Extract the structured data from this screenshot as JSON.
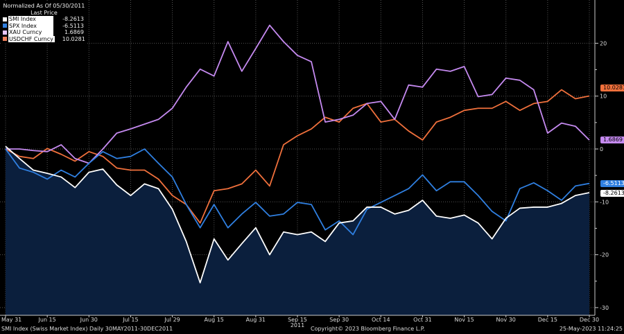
{
  "legend": {
    "header_line1": "Normalized As Of 05/30/2011",
    "header_line2": "Last Price",
    "items": [
      {
        "name": "SMI Index",
        "value": "-8.2613",
        "color": "#ffffff"
      },
      {
        "name": "SPX Index",
        "value": "-6.5113",
        "color": "#2f7fe0"
      },
      {
        "name": "XAU Curncy",
        "value": "1.6869",
        "color": "#c58af0"
      },
      {
        "name": "USDCHF Curncy",
        "value": "10.0281",
        "color": "#f0703c"
      }
    ]
  },
  "chart_data": {
    "type": "line",
    "x_range": [
      "2011-05-31",
      "2011-12-30"
    ],
    "x_tick_labels": [
      "May 31",
      "Jun 15",
      "Jun 30",
      "Jul 15",
      "Jul 29",
      "Aug 15",
      "Aug 31",
      "Sep 15",
      "Sep 30",
      "Oct 14",
      "Oct 31",
      "Nov 15",
      "Nov 30",
      "Dec 15",
      "Dec 30"
    ],
    "x_year_label": "2011",
    "y_ticks": [
      20,
      10,
      0,
      -10,
      -20,
      -30
    ],
    "ylim": [
      -30,
      24
    ],
    "y_axis_side": "right",
    "grid": true,
    "legend_position": "top-left",
    "area_fill_series": "SMI Index",
    "area_fill_color": "#0b1f3d",
    "series": [
      {
        "name": "SMI Index",
        "color": "#ffffff",
        "last": "-8.2613",
        "values": [
          0.5,
          -1.8,
          -4,
          -4.6,
          -5.3,
          -7.3,
          -4.4,
          -3.8,
          -6.8,
          -8.8,
          -6.6,
          -7.5,
          -11.4,
          -17.5,
          -25.3,
          -17,
          -21,
          -17.9,
          -14.9,
          -20,
          -15.7,
          -16.2,
          -15.7,
          -17.5,
          -14,
          -13.6,
          -11,
          -11,
          -12.3,
          -11.6,
          -9.7,
          -12.7,
          -13.1,
          -12.5,
          -14,
          -17,
          -13.1,
          -11.2,
          -11,
          -11,
          -10.3,
          -8.8,
          -8.2613
        ]
      },
      {
        "name": "SPX Index",
        "color": "#2f7fe0",
        "last": "-6.5113",
        "values": [
          0,
          -3.6,
          -4.4,
          -5.7,
          -4,
          -5.3,
          -2.7,
          -0.5,
          -1.8,
          -1.4,
          0,
          -2.7,
          -5.3,
          -10.5,
          -14.9,
          -10.5,
          -14.9,
          -12.3,
          -10.1,
          -12.7,
          -12.3,
          -10.1,
          -10.5,
          -15.3,
          -13.6,
          -16.2,
          -11.4,
          -10.1,
          -8.8,
          -7.5,
          -4.9,
          -7.9,
          -6.2,
          -6.2,
          -8.8,
          -11.8,
          -13.6,
          -7.5,
          -6.4,
          -7.9,
          -9.7,
          -7,
          -6.5113
        ]
      },
      {
        "name": "XAU Curncy",
        "color": "#c58af0",
        "last": "1.6869",
        "values": [
          0,
          0,
          -0.3,
          -0.5,
          0.8,
          -1.8,
          -2.7,
          0,
          3,
          3.8,
          4.7,
          5.6,
          7.7,
          11.7,
          15.1,
          13.8,
          20.3,
          14.7,
          19,
          23.4,
          20.3,
          17.7,
          16.5,
          5.1,
          5.6,
          6.4,
          8.6,
          9,
          5.6,
          12.1,
          11.7,
          15.1,
          14.7,
          15.6,
          9.9,
          10.3,
          13.4,
          13,
          11.2,
          3,
          4.9,
          4.3,
          1.6869
        ]
      },
      {
        "name": "USDCHF Curncy",
        "color": "#f0703c",
        "last": "10.0281",
        "values": [
          0,
          -1.4,
          -1.8,
          0.1,
          -1,
          -2.3,
          -0.5,
          -1.4,
          -3.6,
          -4,
          -4,
          -5.7,
          -8.8,
          -10.5,
          -14,
          -7.9,
          -7.5,
          -6.6,
          -4,
          -7,
          0.8,
          2.5,
          3.8,
          6,
          5.1,
          7.7,
          8.6,
          5.1,
          5.6,
          3.4,
          1.7,
          5.1,
          6,
          7.3,
          7.7,
          7.7,
          9,
          7.3,
          8.6,
          9,
          11.2,
          9.5,
          10.0281
        ]
      }
    ]
  },
  "footer": {
    "left": "SMI Index (Swiss Market Index)  Daily 30MAY2011-30DEC2011",
    "center": "Copyright© 2023 Bloomberg Finance L.P.",
    "right": "25-May-2023 11:24:25"
  }
}
